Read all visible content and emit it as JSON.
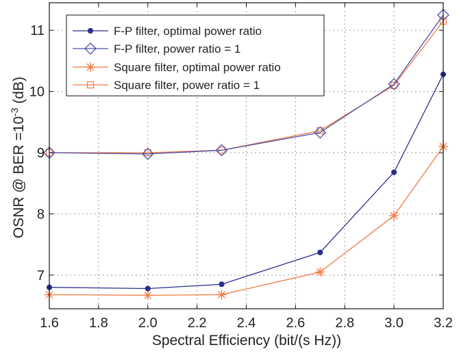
{
  "chart_data": {
    "type": "line",
    "xlabel": "Spectral Efficiency (bit/(s Hz))",
    "ylabel": {
      "pre": "OSNR @ BER =10",
      "sup": "-3",
      "post": " (dB)"
    },
    "xlim": [
      1.6,
      3.2
    ],
    "ylim": [
      6.45,
      11.45
    ],
    "xticks": [
      1.6,
      1.8,
      2.0,
      2.2,
      2.4,
      2.6,
      2.8,
      3.0,
      3.2
    ],
    "xtick_labels": [
      "1.6",
      "1.8",
      "2.0",
      "2.2",
      "2.4",
      "2.6",
      "2.8",
      "3.0",
      "3.2"
    ],
    "yticks": [
      7,
      8,
      9,
      10,
      11
    ],
    "ytick_labels": [
      "7",
      "8",
      "9",
      "10",
      "11"
    ],
    "grid": true,
    "legend_position": "top-left",
    "series": [
      {
        "name": "F-P filter, optimal power ratio",
        "color": "#2b2f8c",
        "marker": "dot",
        "x": [
          1.6,
          2.0,
          2.3,
          2.7,
          3.0,
          3.2
        ],
        "y": [
          6.8,
          6.78,
          6.85,
          7.37,
          8.68,
          10.28
        ]
      },
      {
        "name": "F-P filter, power ratio = 1",
        "color": "#4a4faa",
        "marker": "diamond",
        "x": [
          1.6,
          2.0,
          2.3,
          2.7,
          3.0,
          3.2
        ],
        "y": [
          9.0,
          8.98,
          9.04,
          9.33,
          10.12,
          11.25
        ]
      },
      {
        "name": "Square filter, optimal power ratio",
        "color": "#f07b45",
        "marker": "asterisk",
        "x": [
          1.6,
          2.0,
          2.3,
          2.7,
          3.0,
          3.2
        ],
        "y": [
          6.68,
          6.67,
          6.68,
          7.05,
          7.97,
          9.1
        ]
      },
      {
        "name": "Square filter, power ratio = 1",
        "color": "#f07b45",
        "marker": "square",
        "x": [
          1.6,
          2.0,
          2.3,
          2.7,
          3.0,
          3.2
        ],
        "y": [
          9.0,
          9.0,
          9.04,
          9.36,
          10.1,
          11.15
        ]
      }
    ]
  }
}
